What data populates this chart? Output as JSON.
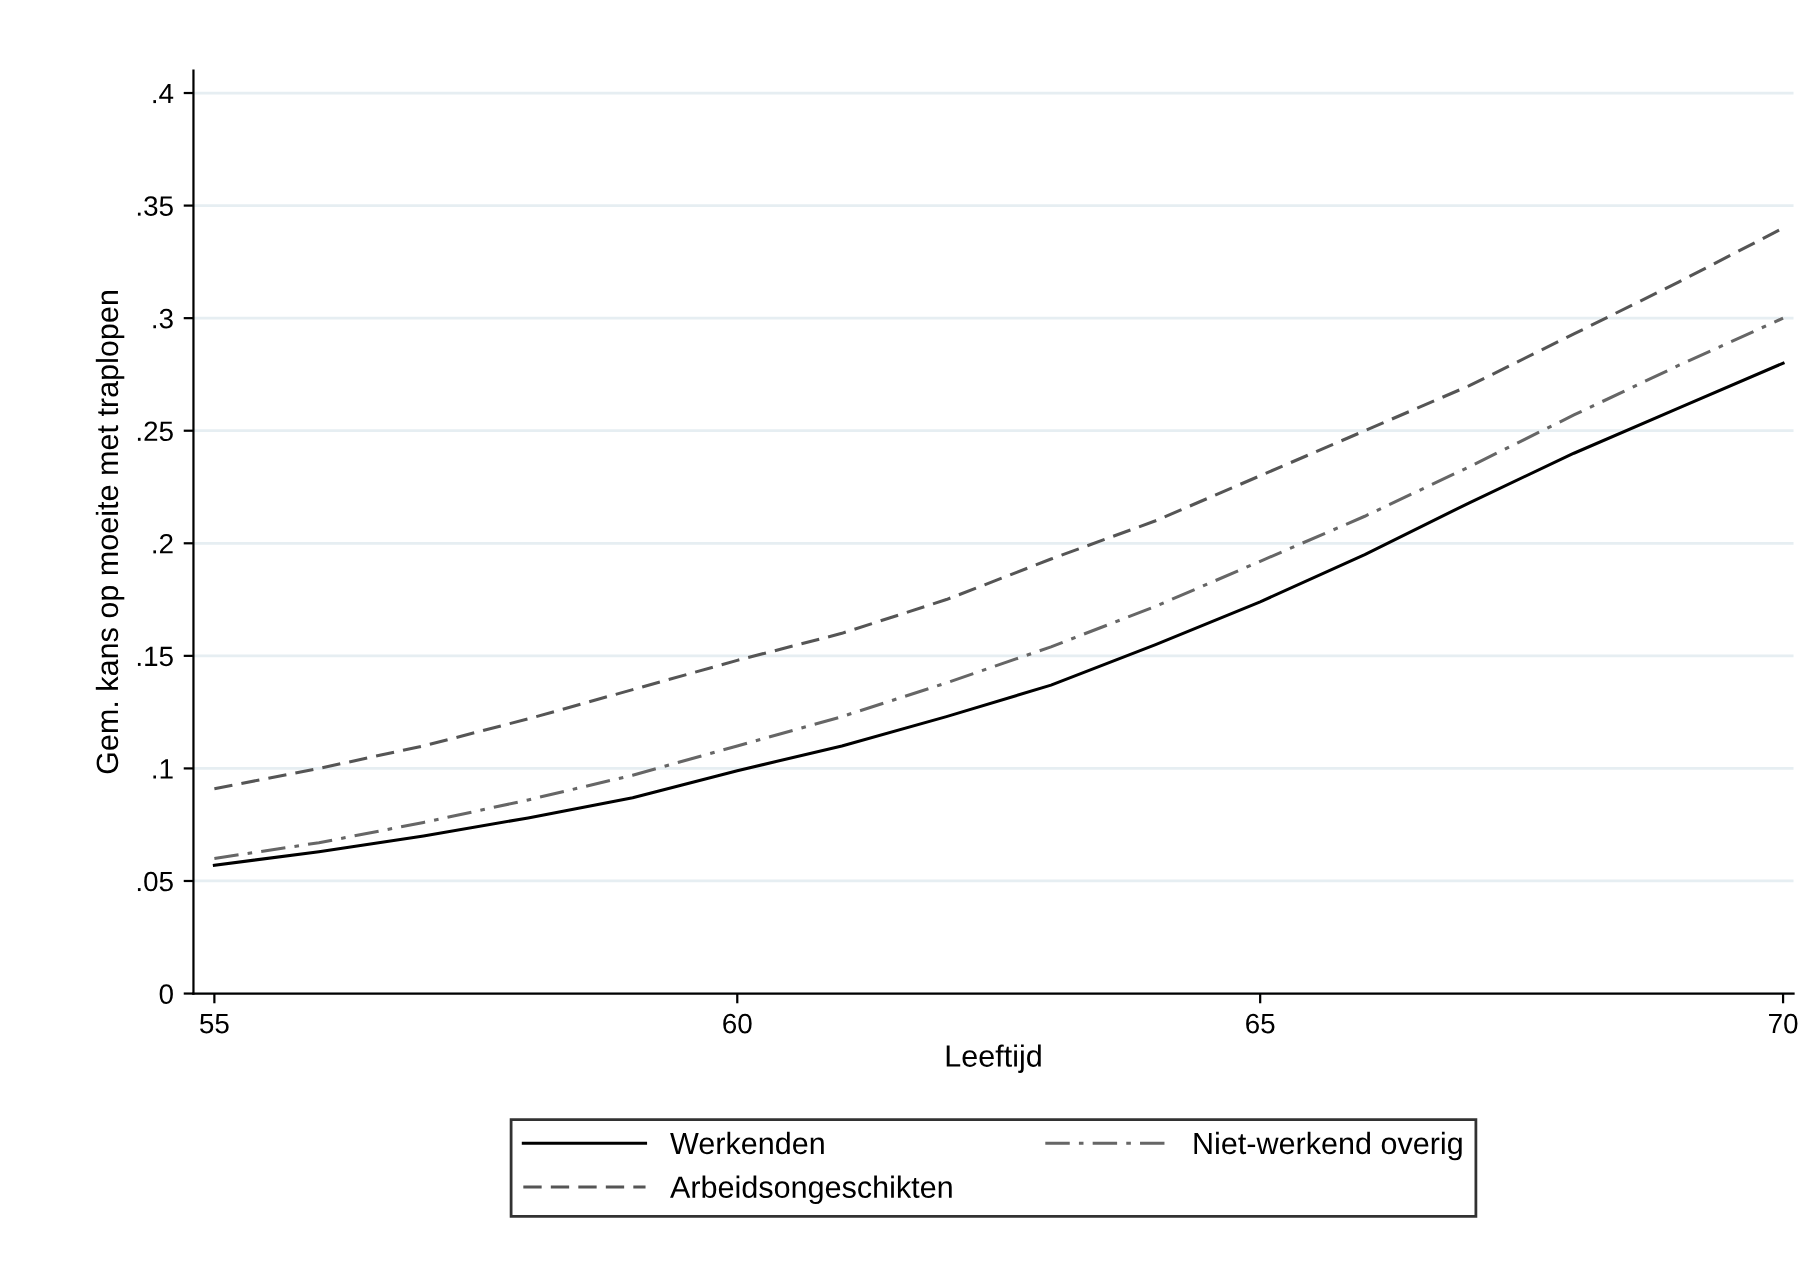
{
  "chart_data": {
    "type": "line",
    "xlabel": "Leeftijd",
    "ylabel": "Gem. kans op moeite met traplopen",
    "xlim": [
      54.8,
      70.1
    ],
    "xticks": [
      55,
      60,
      65,
      70
    ],
    "ylim": [
      0,
      0.41
    ],
    "yticks": [
      0,
      {
        "value": 0.05,
        "label": ".05"
      },
      {
        "value": 0.1,
        "label": ".1"
      },
      {
        "value": 0.15,
        "label": ".15"
      },
      {
        "value": 0.2,
        "label": ".2"
      },
      {
        "value": 0.25,
        "label": ".25"
      },
      {
        "value": 0.3,
        "label": ".3"
      },
      {
        "value": 0.35,
        "label": ".35"
      },
      {
        "value": 0.4,
        "label": ".4"
      }
    ],
    "grid": "y",
    "legend": "bottom",
    "marker": "none",
    "series": [
      {
        "name": "Werkenden",
        "color": "#000000",
        "line_style": "solid",
        "x": [
          55,
          56,
          57,
          58,
          59,
          60,
          61,
          62,
          63,
          64,
          65,
          66,
          67,
          68,
          69,
          70
        ],
        "values": [
          0.057,
          0.063,
          0.07,
          0.078,
          0.087,
          0.099,
          0.11,
          0.123,
          0.137,
          0.155,
          0.174,
          0.195,
          0.218,
          0.24,
          0.26,
          0.28
        ]
      },
      {
        "name": "Arbeidsongeschikten",
        "color": "#555555",
        "line_style": "dashed",
        "x": [
          55,
          56,
          57,
          58,
          59,
          60,
          61,
          62,
          63,
          64,
          65,
          66,
          67,
          68,
          69,
          70
        ],
        "values": [
          0.091,
          0.1,
          0.11,
          0.122,
          0.135,
          0.148,
          0.16,
          0.175,
          0.193,
          0.21,
          0.23,
          0.25,
          0.27,
          0.293,
          0.316,
          0.34
        ]
      },
      {
        "name": "Niet-werkend overig",
        "color": "#666666",
        "line_style": "dashdot",
        "x": [
          55,
          56,
          57,
          58,
          59,
          60,
          61,
          62,
          63,
          64,
          65,
          66,
          67,
          68,
          69,
          70
        ],
        "values": [
          0.06,
          0.067,
          0.076,
          0.086,
          0.097,
          0.11,
          0.123,
          0.138,
          0.154,
          0.172,
          0.192,
          0.212,
          0.234,
          0.257,
          0.279,
          0.3
        ]
      }
    ]
  }
}
